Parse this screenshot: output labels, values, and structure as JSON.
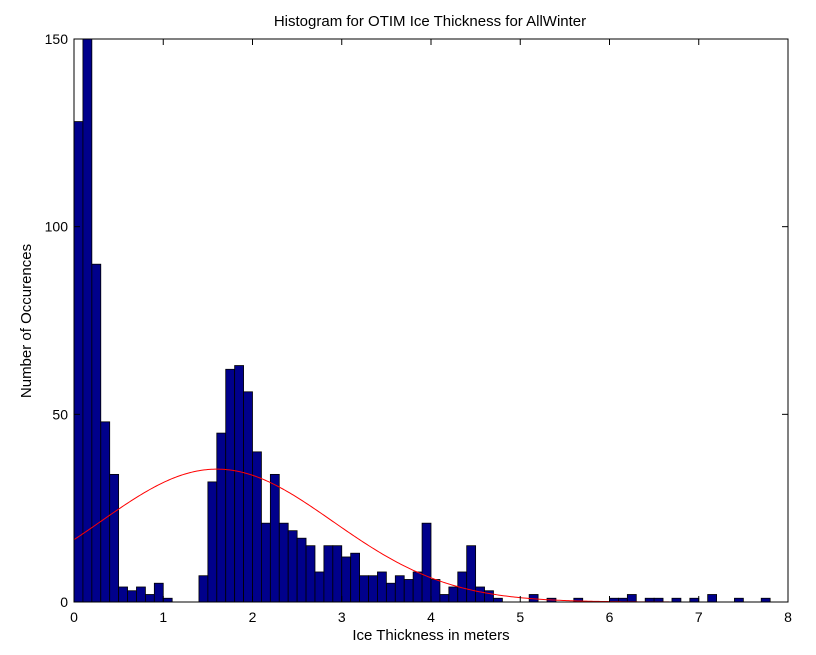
{
  "chart_data": {
    "type": "bar",
    "title": "Histogram for OTIM Ice Thickness for AllWinter",
    "xlabel": "Ice Thickness in meters",
    "ylabel": "Number of Occurences",
    "xlim": [
      0,
      8
    ],
    "ylim": [
      0,
      150
    ],
    "xticks": [
      0,
      1,
      2,
      3,
      4,
      5,
      6,
      7,
      8
    ],
    "yticks": [
      0,
      50,
      100,
      150
    ],
    "bin_width": 0.1,
    "bin_start": 0.0,
    "counts": [
      128,
      152,
      90,
      48,
      34,
      4,
      3,
      4,
      2,
      5,
      1,
      0,
      0,
      0,
      7,
      32,
      45,
      62,
      63,
      56,
      40,
      21,
      34,
      21,
      19,
      17,
      15,
      8,
      15,
      15,
      12,
      13,
      7,
      7,
      8,
      5,
      7,
      6,
      8,
      21,
      6,
      2,
      4,
      8,
      15,
      4,
      3,
      1,
      0,
      0,
      0,
      2,
      0,
      1,
      0,
      0,
      1,
      0,
      0,
      0,
      1,
      1,
      2,
      0,
      1,
      1,
      0,
      1,
      0,
      1,
      0,
      2,
      0,
      0,
      1,
      0,
      0,
      1
    ],
    "bar_color": "#00008B",
    "fit_curve": {
      "type": "normal",
      "color": "#ff0000",
      "mean": 1.6,
      "sigma": 1.3,
      "peak": 35.4
    },
    "grid": false,
    "legend": "none"
  }
}
